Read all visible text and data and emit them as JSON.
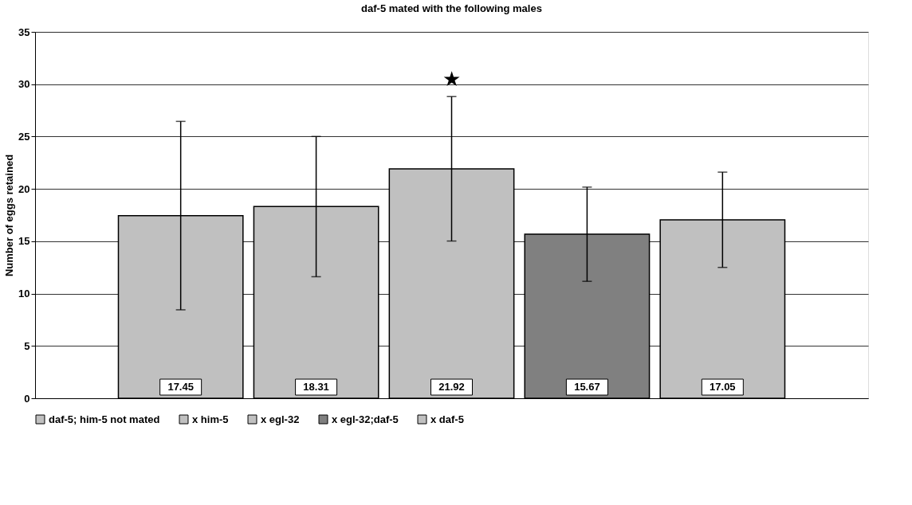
{
  "chart_data": {
    "type": "bar",
    "title": "daf-5 mated with the following males",
    "ylabel": "Number of eggs retained",
    "categories": [
      null
    ],
    "series": [
      {
        "name": "daf-5; him-5 not mated",
        "color": "#c0c0c0",
        "values": [
          17.45
        ],
        "errors": [
          9.0
        ]
      },
      {
        "name": "x him-5",
        "color": "#c0c0c0",
        "values": [
          18.31
        ],
        "errors": [
          6.7
        ]
      },
      {
        "name": "x egl-32",
        "color": "#c0c0c0",
        "values": [
          21.92
        ],
        "errors": [
          6.9
        ]
      },
      {
        "name": "x egl-32;daf-5",
        "color": "#808080",
        "values": [
          15.67
        ],
        "errors": [
          4.5
        ]
      },
      {
        "name": "x daf-5",
        "color": "#c0c0c0",
        "values": [
          17.05
        ],
        "errors": [
          4.55
        ]
      }
    ],
    "ylim": [
      0,
      35
    ],
    "yticks": [
      0,
      5,
      10,
      15,
      20,
      25,
      30,
      35
    ],
    "annotations": [
      "★"
    ],
    "data_labels": true,
    "grid": "y",
    "legend": "bottom"
  }
}
